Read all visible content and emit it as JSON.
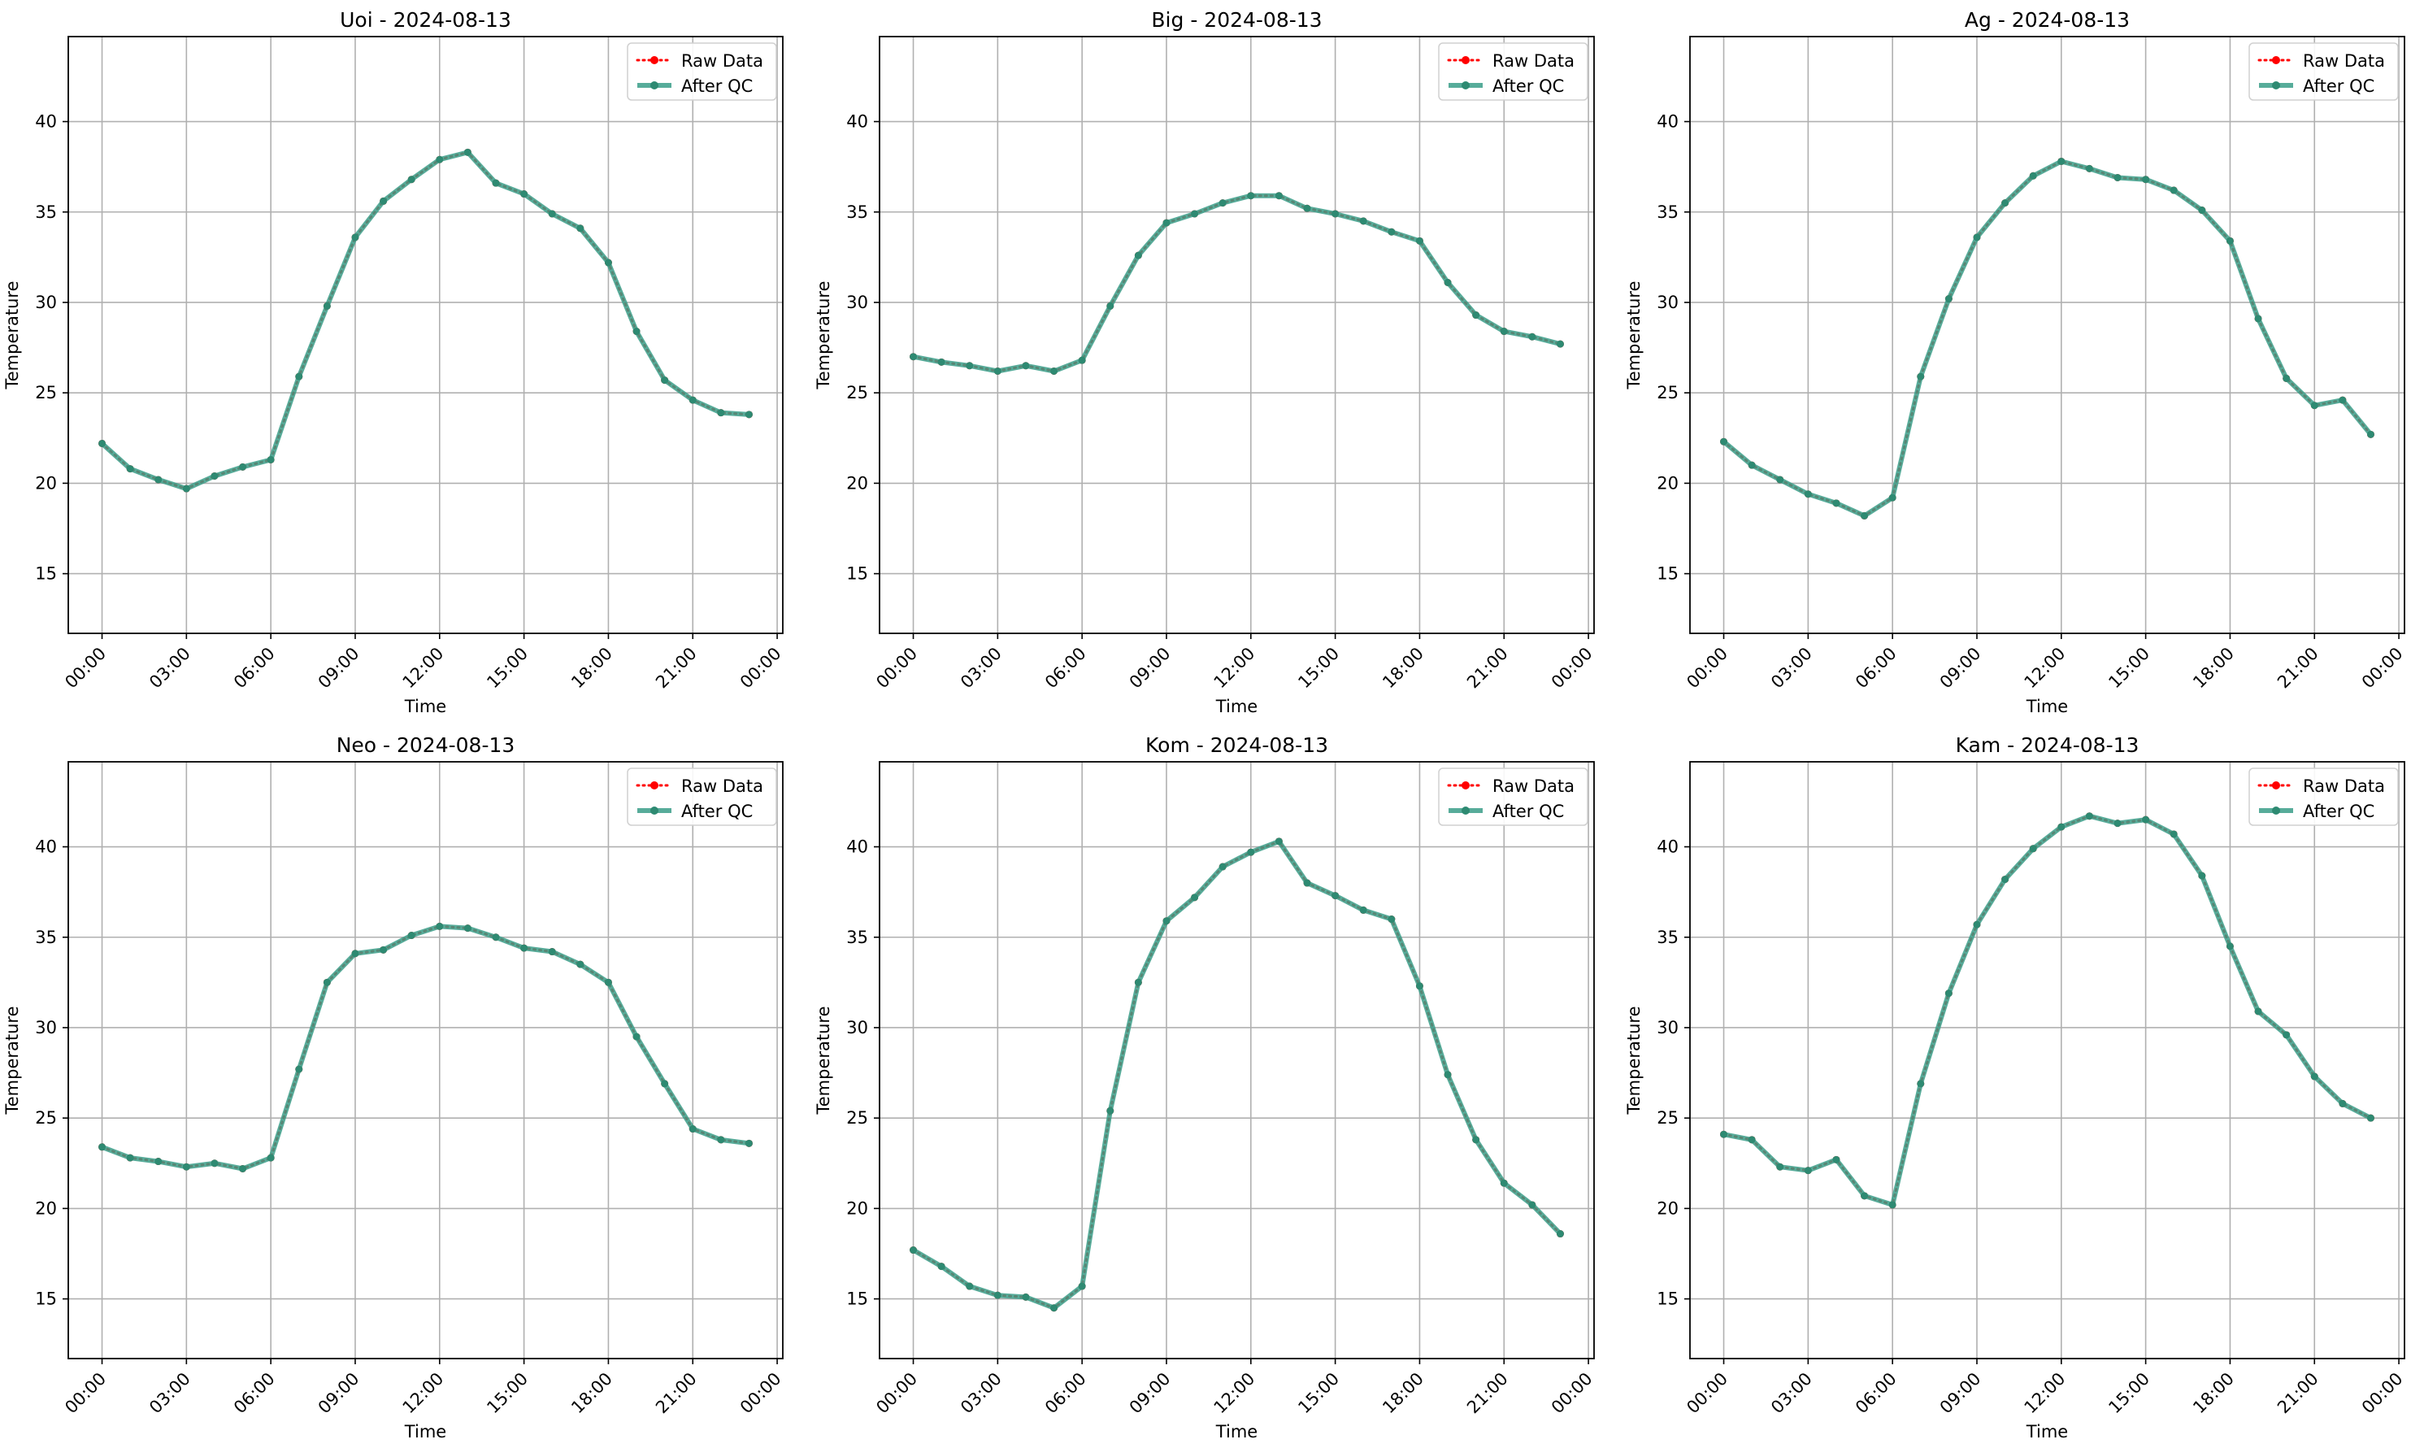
{
  "figure": {
    "legend": {
      "raw": "Raw Data",
      "qc": "After QC",
      "position": "upper right"
    },
    "colors": {
      "raw": "#ff0000",
      "qc": "#3a9e88",
      "qc_marker": "#2e8a72",
      "grid": "#b0b0b0",
      "axis": "#000000"
    },
    "grid": true
  },
  "chart_data": [
    {
      "type": "line",
      "title": "Uoi - 2024-08-13",
      "xlabel": "Time",
      "ylabel": "Temperature",
      "xlim_hours": [
        -1.2,
        24.2
      ],
      "ylim": [
        11.7,
        44.7
      ],
      "xticks": [
        "00:00",
        "03:00",
        "06:00",
        "09:00",
        "12:00",
        "15:00",
        "18:00",
        "21:00",
        "00:00"
      ],
      "yticks": [
        "15",
        "20",
        "25",
        "30",
        "35",
        "40"
      ],
      "x": [
        "00:00",
        "01:00",
        "02:00",
        "03:00",
        "04:00",
        "05:00",
        "06:00",
        "07:00",
        "08:00",
        "09:00",
        "10:00",
        "11:00",
        "12:00",
        "13:00",
        "14:00",
        "15:00",
        "16:00",
        "17:00",
        "18:00",
        "19:00",
        "20:00",
        "21:00",
        "22:00",
        "23:00"
      ],
      "series": [
        {
          "name": "Raw Data",
          "values": [
            22.2,
            20.8,
            20.2,
            19.7,
            20.4,
            20.9,
            21.3,
            25.9,
            29.8,
            33.6,
            35.6,
            36.8,
            37.9,
            38.3,
            36.6,
            36.0,
            34.9,
            34.1,
            32.2,
            28.4,
            25.7,
            24.6,
            23.9,
            23.8
          ]
        },
        {
          "name": "After QC",
          "values": [
            22.2,
            20.8,
            20.2,
            19.7,
            20.4,
            20.9,
            21.3,
            25.9,
            29.8,
            33.6,
            35.6,
            36.8,
            37.9,
            38.3,
            36.6,
            36.0,
            34.9,
            34.1,
            32.2,
            28.4,
            25.7,
            24.6,
            23.9,
            23.8
          ]
        }
      ]
    },
    {
      "type": "line",
      "title": "Big - 2024-08-13",
      "xlabel": "Time",
      "ylabel": "Temperature",
      "xlim_hours": [
        -1.2,
        24.2
      ],
      "ylim": [
        11.7,
        44.7
      ],
      "xticks": [
        "00:00",
        "03:00",
        "06:00",
        "09:00",
        "12:00",
        "15:00",
        "18:00",
        "21:00",
        "00:00"
      ],
      "yticks": [
        "15",
        "20",
        "25",
        "30",
        "35",
        "40"
      ],
      "x": [
        "00:00",
        "01:00",
        "02:00",
        "03:00",
        "04:00",
        "05:00",
        "06:00",
        "07:00",
        "08:00",
        "09:00",
        "10:00",
        "11:00",
        "12:00",
        "13:00",
        "14:00",
        "15:00",
        "16:00",
        "17:00",
        "18:00",
        "19:00",
        "20:00",
        "21:00",
        "22:00",
        "23:00"
      ],
      "series": [
        {
          "name": "Raw Data",
          "values": [
            27.0,
            26.7,
            26.5,
            26.2,
            26.5,
            26.2,
            26.8,
            29.8,
            32.6,
            34.4,
            34.9,
            35.5,
            35.9,
            35.9,
            35.2,
            34.9,
            34.5,
            33.9,
            33.4,
            31.1,
            29.3,
            28.4,
            28.1,
            27.7
          ]
        },
        {
          "name": "After QC",
          "values": [
            27.0,
            26.7,
            26.5,
            26.2,
            26.5,
            26.2,
            26.8,
            29.8,
            32.6,
            34.4,
            34.9,
            35.5,
            35.9,
            35.9,
            35.2,
            34.9,
            34.5,
            33.9,
            33.4,
            31.1,
            29.3,
            28.4,
            28.1,
            27.7
          ]
        }
      ]
    },
    {
      "type": "line",
      "title": "Ag - 2024-08-13",
      "xlabel": "Time",
      "ylabel": "Temperature",
      "xlim_hours": [
        -1.2,
        24.2
      ],
      "ylim": [
        11.7,
        44.7
      ],
      "xticks": [
        "00:00",
        "03:00",
        "06:00",
        "09:00",
        "12:00",
        "15:00",
        "18:00",
        "21:00",
        "00:00"
      ],
      "yticks": [
        "15",
        "20",
        "25",
        "30",
        "35",
        "40"
      ],
      "x": [
        "00:00",
        "01:00",
        "02:00",
        "03:00",
        "04:00",
        "05:00",
        "06:00",
        "07:00",
        "08:00",
        "09:00",
        "10:00",
        "11:00",
        "12:00",
        "13:00",
        "14:00",
        "15:00",
        "16:00",
        "17:00",
        "18:00",
        "19:00",
        "20:00",
        "21:00",
        "22:00",
        "23:00"
      ],
      "series": [
        {
          "name": "Raw Data",
          "values": [
            22.3,
            21.0,
            20.2,
            19.4,
            18.9,
            18.2,
            19.2,
            25.9,
            30.2,
            33.6,
            35.5,
            37.0,
            37.8,
            37.4,
            36.9,
            36.8,
            36.2,
            35.1,
            33.4,
            29.1,
            25.8,
            24.3,
            24.6,
            22.7
          ]
        },
        {
          "name": "After QC",
          "values": [
            22.3,
            21.0,
            20.2,
            19.4,
            18.9,
            18.2,
            19.2,
            25.9,
            30.2,
            33.6,
            35.5,
            37.0,
            37.8,
            37.4,
            36.9,
            36.8,
            36.2,
            35.1,
            33.4,
            29.1,
            25.8,
            24.3,
            24.6,
            22.7
          ]
        }
      ]
    },
    {
      "type": "line",
      "title": "Neo - 2024-08-13",
      "xlabel": "Time",
      "ylabel": "Temperature",
      "xlim_hours": [
        -1.2,
        24.2
      ],
      "ylim": [
        11.7,
        44.7
      ],
      "xticks": [
        "00:00",
        "03:00",
        "06:00",
        "09:00",
        "12:00",
        "15:00",
        "18:00",
        "21:00",
        "00:00"
      ],
      "yticks": [
        "15",
        "20",
        "25",
        "30",
        "35",
        "40"
      ],
      "x": [
        "00:00",
        "01:00",
        "02:00",
        "03:00",
        "04:00",
        "05:00",
        "06:00",
        "07:00",
        "08:00",
        "09:00",
        "10:00",
        "11:00",
        "12:00",
        "13:00",
        "14:00",
        "15:00",
        "16:00",
        "17:00",
        "18:00",
        "19:00",
        "20:00",
        "21:00",
        "22:00",
        "23:00"
      ],
      "series": [
        {
          "name": "Raw Data",
          "values": [
            23.4,
            22.8,
            22.6,
            22.3,
            22.5,
            22.2,
            22.8,
            27.7,
            32.5,
            34.1,
            34.3,
            35.1,
            35.6,
            35.5,
            35.0,
            34.4,
            34.2,
            33.5,
            32.5,
            29.5,
            26.9,
            24.4,
            23.8,
            23.6
          ]
        },
        {
          "name": "After QC",
          "values": [
            23.4,
            22.8,
            22.6,
            22.3,
            22.5,
            22.2,
            22.8,
            27.7,
            32.5,
            34.1,
            34.3,
            35.1,
            35.6,
            35.5,
            35.0,
            34.4,
            34.2,
            33.5,
            32.5,
            29.5,
            26.9,
            24.4,
            23.8,
            23.6
          ]
        }
      ]
    },
    {
      "type": "line",
      "title": "Kom - 2024-08-13",
      "xlabel": "Time",
      "ylabel": "Temperature",
      "xlim_hours": [
        -1.2,
        24.2
      ],
      "ylim": [
        11.7,
        44.7
      ],
      "xticks": [
        "00:00",
        "03:00",
        "06:00",
        "09:00",
        "12:00",
        "15:00",
        "18:00",
        "21:00",
        "00:00"
      ],
      "yticks": [
        "15",
        "20",
        "25",
        "30",
        "35",
        "40"
      ],
      "x": [
        "00:00",
        "01:00",
        "02:00",
        "03:00",
        "04:00",
        "05:00",
        "06:00",
        "07:00",
        "08:00",
        "09:00",
        "10:00",
        "11:00",
        "12:00",
        "13:00",
        "14:00",
        "15:00",
        "16:00",
        "17:00",
        "18:00",
        "19:00",
        "20:00",
        "21:00",
        "22:00",
        "23:00"
      ],
      "series": [
        {
          "name": "Raw Data",
          "values": [
            17.7,
            16.8,
            15.7,
            15.2,
            15.1,
            14.5,
            15.7,
            25.4,
            32.5,
            35.9,
            37.2,
            38.9,
            39.7,
            40.3,
            38.0,
            37.3,
            36.5,
            36.0,
            32.3,
            27.4,
            23.8,
            21.4,
            20.2,
            18.6
          ]
        },
        {
          "name": "After QC",
          "values": [
            17.7,
            16.8,
            15.7,
            15.2,
            15.1,
            14.5,
            15.7,
            25.4,
            32.5,
            35.9,
            37.2,
            38.9,
            39.7,
            40.3,
            38.0,
            37.3,
            36.5,
            36.0,
            32.3,
            27.4,
            23.8,
            21.4,
            20.2,
            18.6
          ]
        }
      ]
    },
    {
      "type": "line",
      "title": "Kam - 2024-08-13",
      "xlabel": "Time",
      "ylabel": "Temperature",
      "xlim_hours": [
        -1.2,
        24.2
      ],
      "ylim": [
        11.7,
        44.7
      ],
      "xticks": [
        "00:00",
        "03:00",
        "06:00",
        "09:00",
        "12:00",
        "15:00",
        "18:00",
        "21:00",
        "00:00"
      ],
      "yticks": [
        "15",
        "20",
        "25",
        "30",
        "35",
        "40"
      ],
      "x": [
        "00:00",
        "01:00",
        "02:00",
        "03:00",
        "04:00",
        "05:00",
        "06:00",
        "07:00",
        "08:00",
        "09:00",
        "10:00",
        "11:00",
        "12:00",
        "13:00",
        "14:00",
        "15:00",
        "16:00",
        "17:00",
        "18:00",
        "19:00",
        "20:00",
        "21:00",
        "22:00",
        "23:00"
      ],
      "series": [
        {
          "name": "Raw Data",
          "values": [
            24.1,
            23.8,
            22.3,
            22.1,
            22.7,
            20.7,
            20.2,
            26.9,
            31.9,
            35.7,
            38.2,
            39.9,
            41.1,
            41.7,
            41.3,
            41.5,
            40.7,
            38.4,
            34.5,
            30.9,
            29.6,
            27.3,
            25.8,
            25.0
          ]
        },
        {
          "name": "After QC",
          "values": [
            24.1,
            23.8,
            22.3,
            22.1,
            22.7,
            20.7,
            20.2,
            26.9,
            31.9,
            35.7,
            38.2,
            39.9,
            41.1,
            41.7,
            41.3,
            41.5,
            40.7,
            38.4,
            34.5,
            30.9,
            29.6,
            27.3,
            25.8,
            25.0
          ]
        }
      ]
    }
  ]
}
